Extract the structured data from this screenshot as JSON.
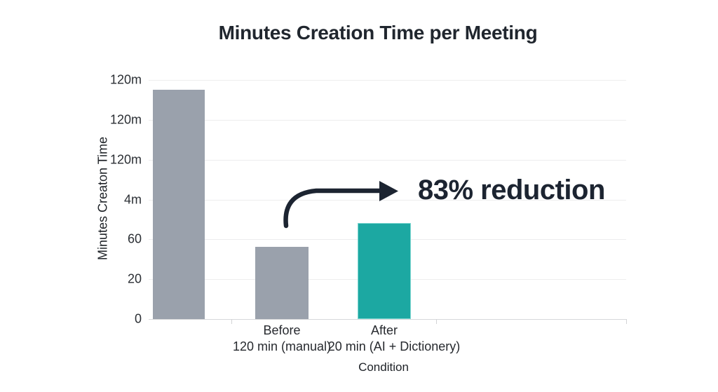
{
  "title": "Minutes Creation Time per Meeting",
  "colors": {
    "ink": "#1c2431",
    "title_text": "#20262e",
    "bar_gray": "#9aa1ac",
    "bar_teal": "#1ca8a2",
    "gridline": "#ededee",
    "axis_line": "#d7d8da"
  },
  "chart_data": {
    "type": "bar",
    "title": "Minutes Creation Time per Meeting",
    "xlabel": "Condition",
    "ylabel": "Minutes Creaton Time",
    "annotation": "83% reduction",
    "grid": true,
    "y_tick_labels_top_to_bottom": [
      "120m",
      "120m",
      "120m",
      "4m",
      "60",
      "20",
      "0"
    ],
    "bars": [
      {
        "label": "",
        "sublabel": "",
        "height_fraction": 0.959,
        "color": "#9aa1ac",
        "kind": "gray"
      },
      {
        "label": "Before",
        "sublabel": "120 min (manual)",
        "height_fraction": 0.302,
        "color": "#9aa1ac",
        "kind": "gray"
      },
      {
        "label": "After",
        "sublabel": "20 min (AI + Dictionery)",
        "height_fraction": 0.402,
        "color": "#1ca8a2",
        "kind": "teal"
      }
    ],
    "implied_values": {
      "before_min": 120,
      "after_min": 20,
      "reduction_pct": 83
    }
  }
}
